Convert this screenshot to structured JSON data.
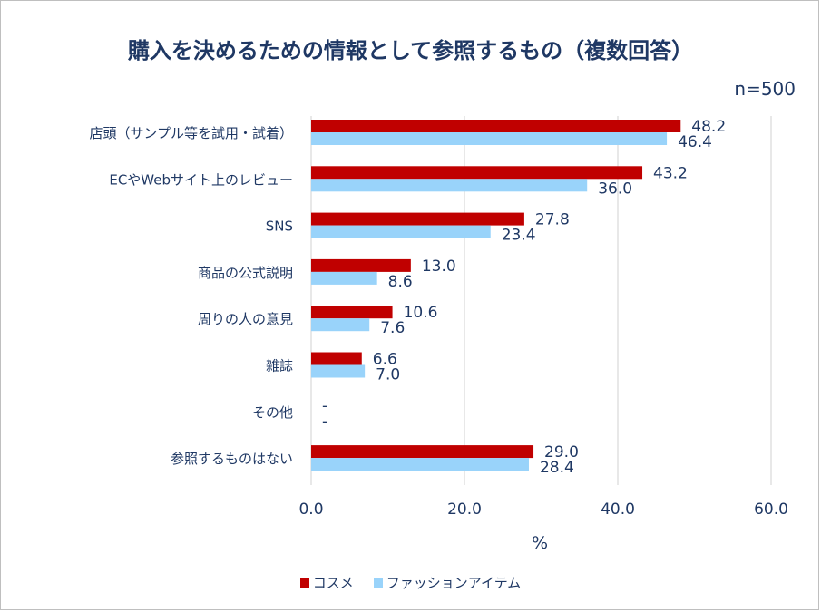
{
  "chart_data": {
    "type": "bar",
    "orientation": "horizontal",
    "title": "購入を決めるための情報として参照するもの（複数回答）",
    "sample_size": "n=500",
    "xlabel": "%",
    "xlim": [
      0,
      60
    ],
    "xticks": [
      0,
      20,
      40,
      60
    ],
    "xtick_labels": [
      "0.0",
      "20.0",
      "40.0",
      "60.0"
    ],
    "grid": true,
    "legend_position": "bottom",
    "categories": [
      "店頭（サンプル等を試用・試着）",
      "ECやWebサイト上のレビュー",
      "SNS",
      "商品の公式説明",
      "周りの人の意見",
      "雑誌",
      "その他",
      "参照するものはない"
    ],
    "series": [
      {
        "name": "コスメ",
        "color": "#c00000",
        "values": [
          48.2,
          43.2,
          27.8,
          13.0,
          10.6,
          6.6,
          0,
          29.0
        ],
        "labels": [
          "48.2",
          "43.2",
          "27.8",
          "13.0",
          "10.6",
          "6.6",
          "-",
          "29.0"
        ]
      },
      {
        "name": "ファッションアイテム",
        "color": "#99d3fa",
        "values": [
          46.4,
          36.0,
          23.4,
          8.6,
          7.6,
          7.0,
          0,
          28.4
        ],
        "labels": [
          "46.4",
          "36.0",
          "23.4",
          "8.6",
          "7.6",
          "7.0",
          "-",
          "28.4"
        ]
      }
    ]
  },
  "colors": {
    "text": "#1f3864",
    "grid": "#d9d9d9"
  }
}
